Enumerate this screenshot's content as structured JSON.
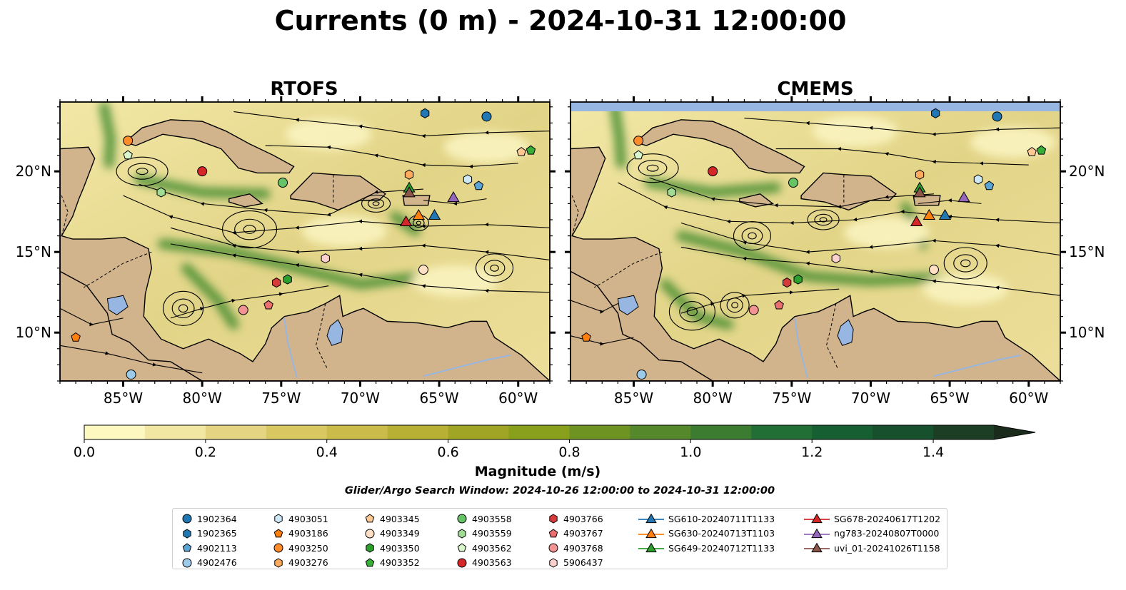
{
  "chart_data": {
    "type": "map",
    "title": "Currents (0 m) - 2024-10-31 12:00:00",
    "panels": [
      {
        "title": "RTOFS"
      },
      {
        "title": "CMEMS"
      }
    ],
    "xlim": [
      -89,
      -58
    ],
    "ylim": [
      7,
      24.3
    ],
    "xticks": [
      {
        "v": -85,
        "label": "85°W"
      },
      {
        "v": -80,
        "label": "80°W"
      },
      {
        "v": -75,
        "label": "75°W"
      },
      {
        "v": -70,
        "label": "70°W"
      },
      {
        "v": -65,
        "label": "65°W"
      },
      {
        "v": -60,
        "label": "60°W"
      }
    ],
    "yticks": [
      {
        "v": 20,
        "label": "20°N"
      },
      {
        "v": 15,
        "label": "15°N"
      },
      {
        "v": 10,
        "label": "10°N"
      }
    ],
    "colorbar": {
      "label": "Magnitude (m/s)",
      "range": [
        0,
        1.5
      ],
      "extend": "max",
      "ticks": [
        {
          "v": 0.0,
          "label": "0.0"
        },
        {
          "v": 0.2,
          "label": "0.2"
        },
        {
          "v": 0.4,
          "label": "0.4"
        },
        {
          "v": 0.6,
          "label": "0.6"
        },
        {
          "v": 0.8,
          "label": "0.8"
        },
        {
          "v": 1.0,
          "label": "1.0"
        },
        {
          "v": 1.2,
          "label": "1.2"
        },
        {
          "v": 1.4,
          "label": "1.4"
        }
      ],
      "colors": [
        "#fdf7c0",
        "#f1e6a2",
        "#e5d481",
        "#d9c762",
        "#cbbb4a",
        "#b8b035",
        "#a1a525",
        "#88a01c",
        "#6f9323",
        "#55882b",
        "#3c7c31",
        "#226f35",
        "#155f32",
        "#16502c",
        "#1b3e24",
        "#1b2b1b"
      ]
    },
    "subtitle": "Glider/Argo Search Window: 2024-10-26 12:00:00 to 2024-10-31 12:00:00",
    "floats": [
      {
        "name": "1902364",
        "marker": "circle",
        "color": "#1f77b4",
        "lon": -62.0,
        "lat": 23.4
      },
      {
        "name": "1902365",
        "marker": "hexagon",
        "color": "#1f77b4",
        "lon": -65.9,
        "lat": 23.6
      },
      {
        "name": "4902113",
        "marker": "pentagon",
        "color": "#5aa4d6",
        "lon": -62.5,
        "lat": 19.1
      },
      {
        "name": "4902476",
        "marker": "circle",
        "color": "#9ecae9",
        "lon": -84.5,
        "lat": 7.4
      },
      {
        "name": "4903051",
        "marker": "hexagon",
        "color": "#cfe8f6",
        "lon": -63.2,
        "lat": 19.5
      },
      {
        "name": "4903186",
        "marker": "pentagon",
        "color": "#ff7f0e",
        "lon": -88.0,
        "lat": 9.7
      },
      {
        "name": "4903250",
        "marker": "circle",
        "color": "#ff8c2a",
        "lon": -84.7,
        "lat": 21.9
      },
      {
        "name": "4903276",
        "marker": "hexagon",
        "color": "#ffaa5c",
        "lon": -66.9,
        "lat": 19.8
      },
      {
        "name": "4903345",
        "marker": "pentagon",
        "color": "#ffc994",
        "lon": -59.8,
        "lat": 21.2
      },
      {
        "name": "4903349",
        "marker": "circle",
        "color": "#ffe0c4",
        "lon": -66.0,
        "lat": 13.9
      },
      {
        "name": "4903350",
        "marker": "hexagon",
        "color": "#2ca02c",
        "lon": -74.6,
        "lat": 13.3
      },
      {
        "name": "4903352",
        "marker": "pentagon",
        "color": "#38b038",
        "lon": -59.2,
        "lat": 21.3
      },
      {
        "name": "4903558",
        "marker": "circle",
        "color": "#66c466",
        "lon": -74.9,
        "lat": 19.3
      },
      {
        "name": "4903559",
        "marker": "hexagon",
        "color": "#a0dc94",
        "lon": -82.6,
        "lat": 18.7
      },
      {
        "name": "4903562",
        "marker": "pentagon",
        "color": "#d8f5cc",
        "lon": -84.7,
        "lat": 21.0
      },
      {
        "name": "4903563",
        "marker": "circle",
        "color": "#d62728",
        "lon": -80.0,
        "lat": 20.0
      },
      {
        "name": "4903766",
        "marker": "hexagon",
        "color": "#d63a3a",
        "lon": -75.3,
        "lat": 13.1
      },
      {
        "name": "4903767",
        "marker": "pentagon",
        "color": "#ec6f6f",
        "lon": -75.8,
        "lat": 11.7
      },
      {
        "name": "4903768",
        "marker": "circle",
        "color": "#f29393",
        "lon": -77.4,
        "lat": 11.4
      },
      {
        "name": "5906437",
        "marker": "hexagon",
        "color": "#fdd0d0",
        "lon": -72.2,
        "lat": 14.6
      }
    ],
    "gliders": [
      {
        "name": "SG610-20240711T1133",
        "color": "#1f77b4",
        "lon": -65.3,
        "lat": 17.3
      },
      {
        "name": "SG630-20240713T1103",
        "color": "#ff7f0e",
        "lon": -66.3,
        "lat": 17.3
      },
      {
        "name": "SG649-20240712T1133",
        "color": "#2ca02c",
        "lon": -66.9,
        "lat": 19.0
      },
      {
        "name": "SG678-20240617T1202",
        "color": "#d62728",
        "lon": -67.1,
        "lat": 16.9
      },
      {
        "name": "ng783-20240807T0000",
        "color": "#9467bd",
        "lon": -64.1,
        "lat": 18.4
      },
      {
        "name": "uvi_01-20241026T1158",
        "color": "#8c564b",
        "lon": -66.9,
        "lat": 18.7
      }
    ]
  }
}
